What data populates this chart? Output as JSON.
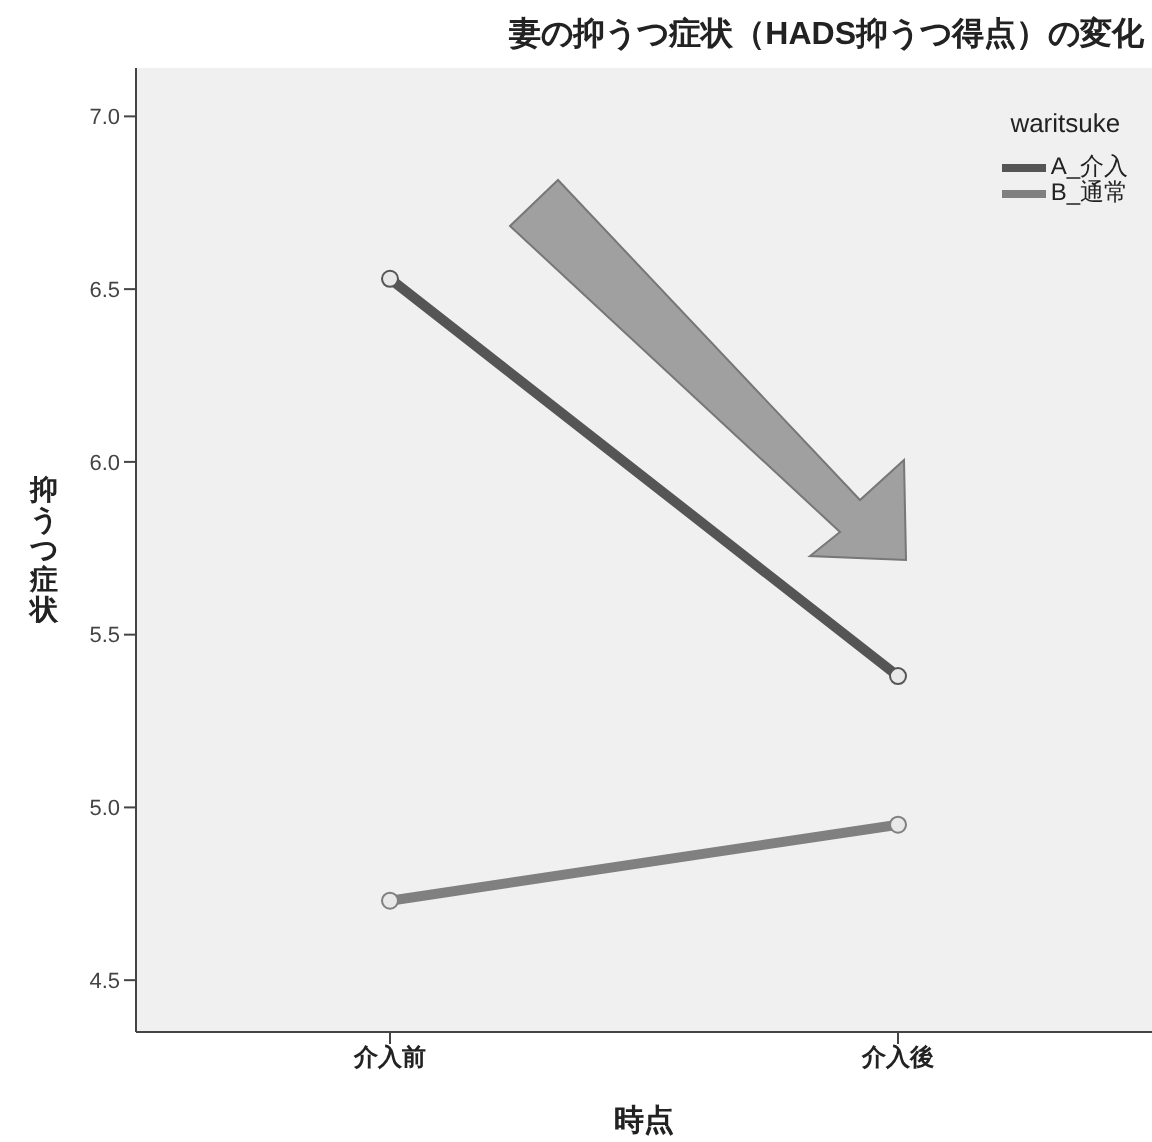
{
  "chart_data": {
    "type": "line",
    "title": "妻の抑うつ症状（HADS抑うつ得点）の変化",
    "xlabel": "時点",
    "ylabel": "抑うつ症状",
    "legend_title": "waritsuke",
    "categories": [
      "介入前",
      "介入後"
    ],
    "series": [
      {
        "name": "A_介入",
        "color": "#555555",
        "values": [
          6.53,
          5.38
        ]
      },
      {
        "name": "B_通常",
        "color": "#808080",
        "values": [
          4.73,
          4.95
        ]
      }
    ],
    "ylim": [
      4.35,
      7.14
    ],
    "yticks": [
      4.5,
      {
        "value": 5,
        "label": "5.0"
      },
      5.5,
      {
        "value": 6,
        "label": "6.0"
      },
      6.5,
      {
        "value": 7,
        "label": "7.0"
      }
    ],
    "legend": "top right",
    "marker": "circle",
    "line_style": "solid"
  }
}
